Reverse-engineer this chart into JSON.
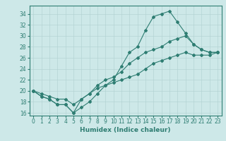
{
  "xlabel": "Humidex (Indice chaleur)",
  "xlim": [
    -0.5,
    23.5
  ],
  "ylim": [
    15.5,
    35.5
  ],
  "xticks": [
    0,
    1,
    2,
    3,
    4,
    5,
    6,
    7,
    8,
    9,
    10,
    11,
    12,
    13,
    14,
    15,
    16,
    17,
    18,
    19,
    20,
    21,
    22,
    23
  ],
  "yticks": [
    16,
    18,
    20,
    22,
    24,
    26,
    28,
    30,
    32,
    34
  ],
  "bg_color": "#cde8e8",
  "line_color": "#2e7d72",
  "grid_color": "#b0d0d0",
  "line1_x": [
    0,
    1,
    2,
    3,
    4,
    5,
    6,
    7,
    8,
    9,
    10,
    11,
    12,
    13,
    14,
    15,
    16,
    17,
    18,
    19,
    20,
    21,
    22,
    23
  ],
  "line1_y": [
    20,
    19,
    18.5,
    17.5,
    17.5,
    16,
    17,
    18,
    19.5,
    21,
    22,
    24.5,
    27,
    28,
    31,
    33.5,
    34,
    34.5,
    32.5,
    30.5,
    28.5,
    27.5,
    27,
    27
  ],
  "line2_x": [
    0,
    1,
    2,
    3,
    4,
    5,
    6,
    7,
    8,
    9,
    10,
    11,
    12,
    13,
    14,
    15,
    16,
    17,
    18,
    19,
    20,
    21,
    22,
    23
  ],
  "line2_y": [
    20,
    19,
    18.5,
    17.5,
    17.5,
    16,
    18.5,
    19.5,
    21,
    22,
    22.5,
    23.5,
    25,
    26,
    27,
    27.5,
    28,
    29,
    29.5,
    30,
    28.5,
    27.5,
    27,
    27
  ],
  "line3_x": [
    0,
    1,
    2,
    3,
    4,
    5,
    6,
    7,
    8,
    9,
    10,
    11,
    12,
    13,
    14,
    15,
    16,
    17,
    18,
    19,
    20,
    21,
    22,
    23
  ],
  "line3_y": [
    20,
    19.5,
    19,
    18.5,
    18.5,
    17.5,
    18.5,
    19.5,
    20.5,
    21,
    21.5,
    22,
    22.5,
    23,
    24,
    25,
    25.5,
    26,
    26.5,
    27,
    26.5,
    26.5,
    26.5,
    27
  ]
}
